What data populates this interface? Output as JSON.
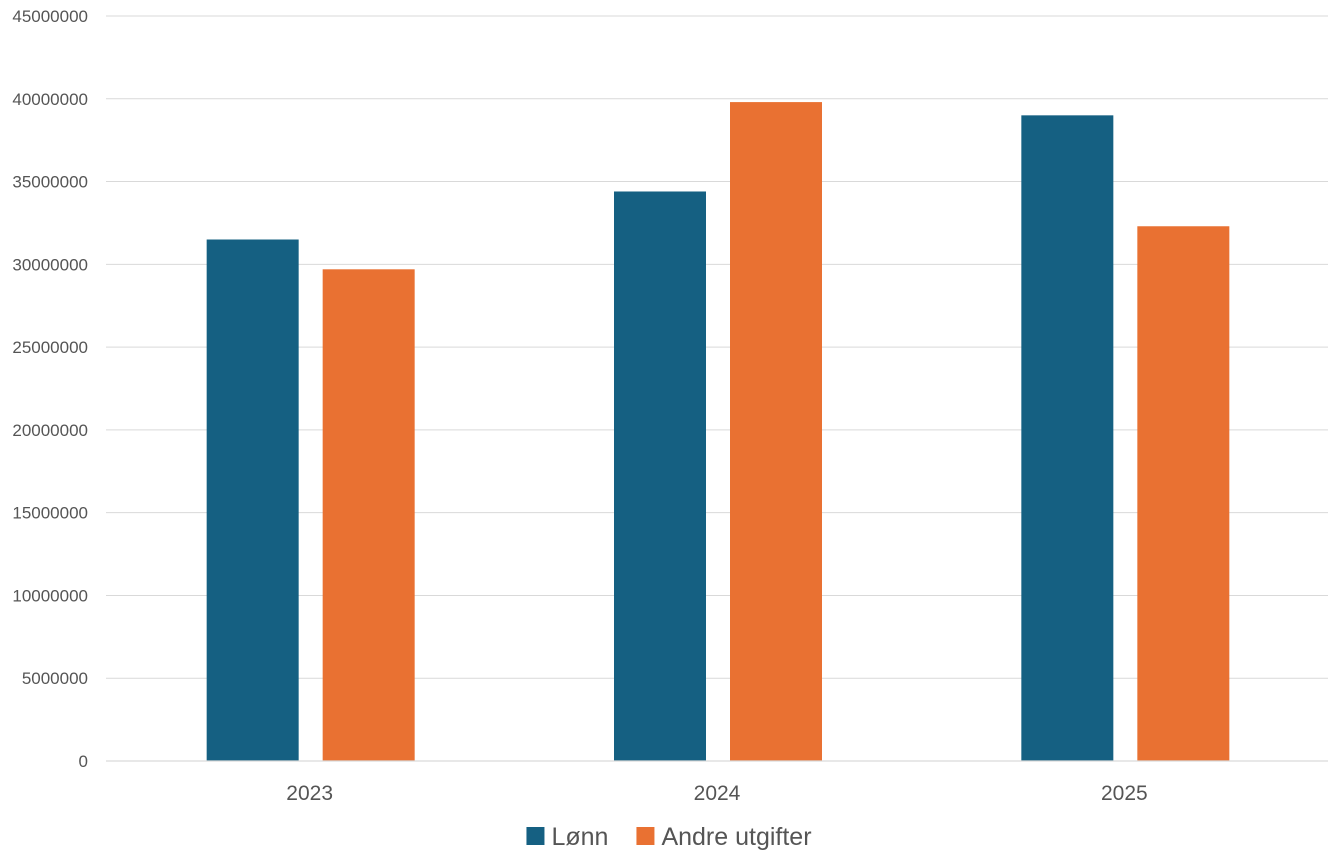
{
  "chart_data": {
    "type": "bar",
    "categories": [
      "2023",
      "2024",
      "2025"
    ],
    "series": [
      {
        "name": "Lønn",
        "color": "#156082",
        "values": [
          31500000,
          34400000,
          39000000
        ]
      },
      {
        "name": "Andre utgifter",
        "color": "#E97132",
        "values": [
          29700000,
          39800000,
          32300000
        ]
      }
    ],
    "ylim": [
      0,
      45000000
    ],
    "yticks": [
      "0",
      "5000000",
      "10000000",
      "15000000",
      "20000000",
      "25000000",
      "30000000",
      "35000000",
      "40000000",
      "45000000"
    ],
    "grid": true,
    "legend": "bottom-center"
  }
}
